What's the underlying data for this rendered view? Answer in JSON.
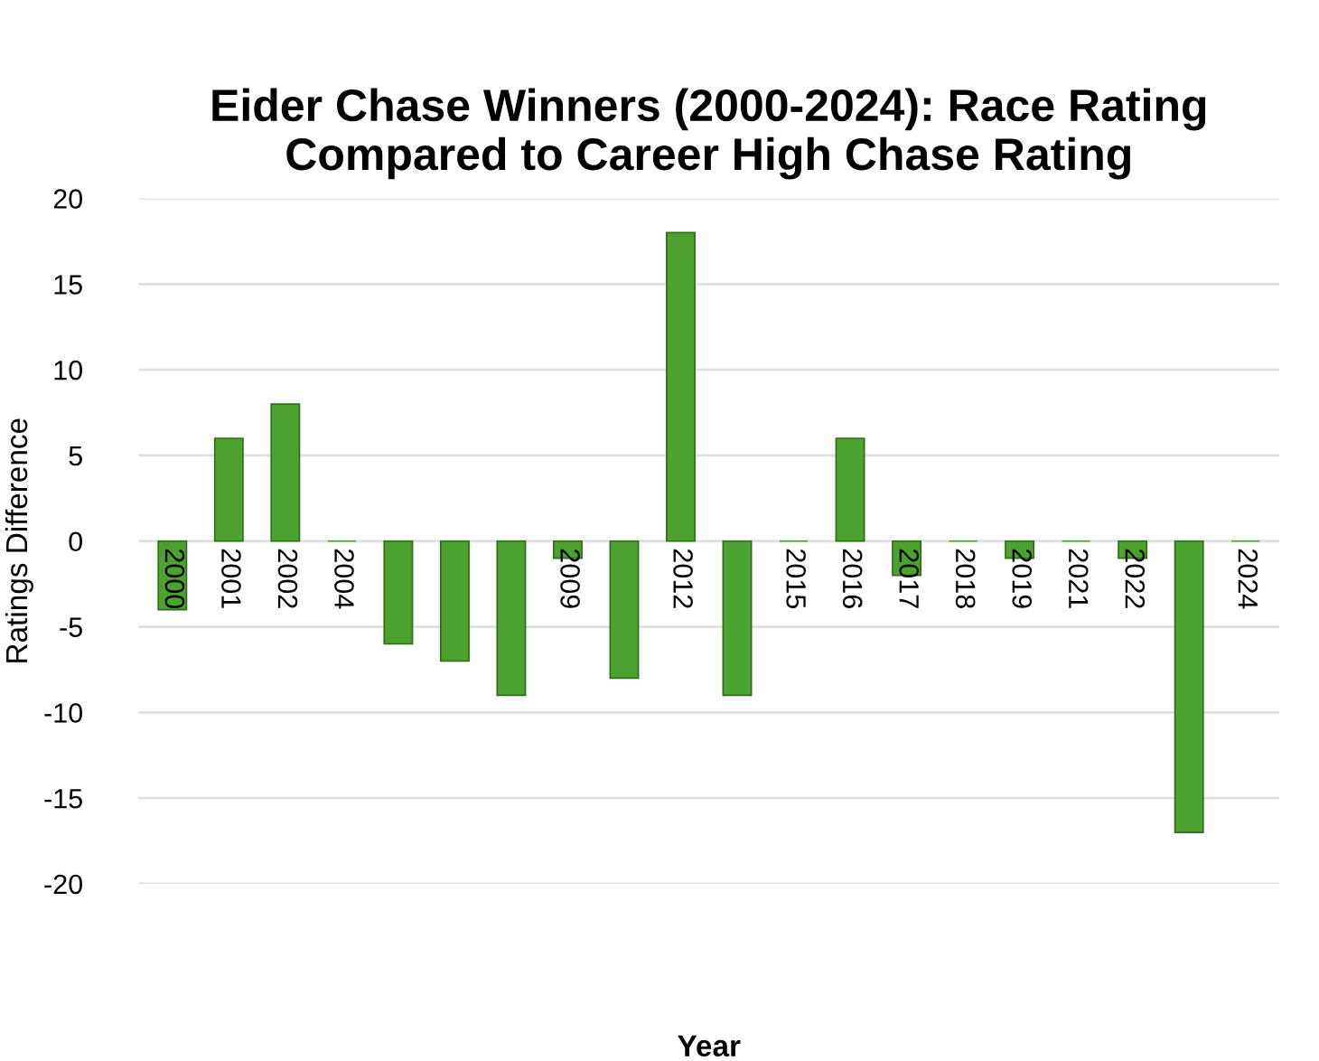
{
  "chart_data": {
    "type": "bar",
    "title": "Eider Chase Winners (2000-2024): Race Rating Compared to Career High Chase Rating",
    "xlabel": "Year",
    "ylabel": "Ratings Difference",
    "categories": [
      "2000",
      "2001",
      "2002",
      "2004",
      null,
      null,
      null,
      "2009",
      null,
      "2012",
      null,
      "2015",
      "2016",
      "2017",
      "2018",
      "2019",
      "2021",
      "2022",
      null,
      "2024"
    ],
    "values": [
      -4,
      6,
      8,
      0,
      -6,
      -7,
      -9,
      -1,
      -8,
      18,
      -9,
      0,
      6,
      -2,
      0,
      -1,
      0,
      -1,
      -17,
      0
    ],
    "color": "#4ca22e",
    "ylim": [
      -20,
      20
    ],
    "yticks": [
      -20,
      -15,
      -10,
      -5,
      0,
      5,
      10,
      15,
      20
    ],
    "grid": "y",
    "legend": false
  }
}
